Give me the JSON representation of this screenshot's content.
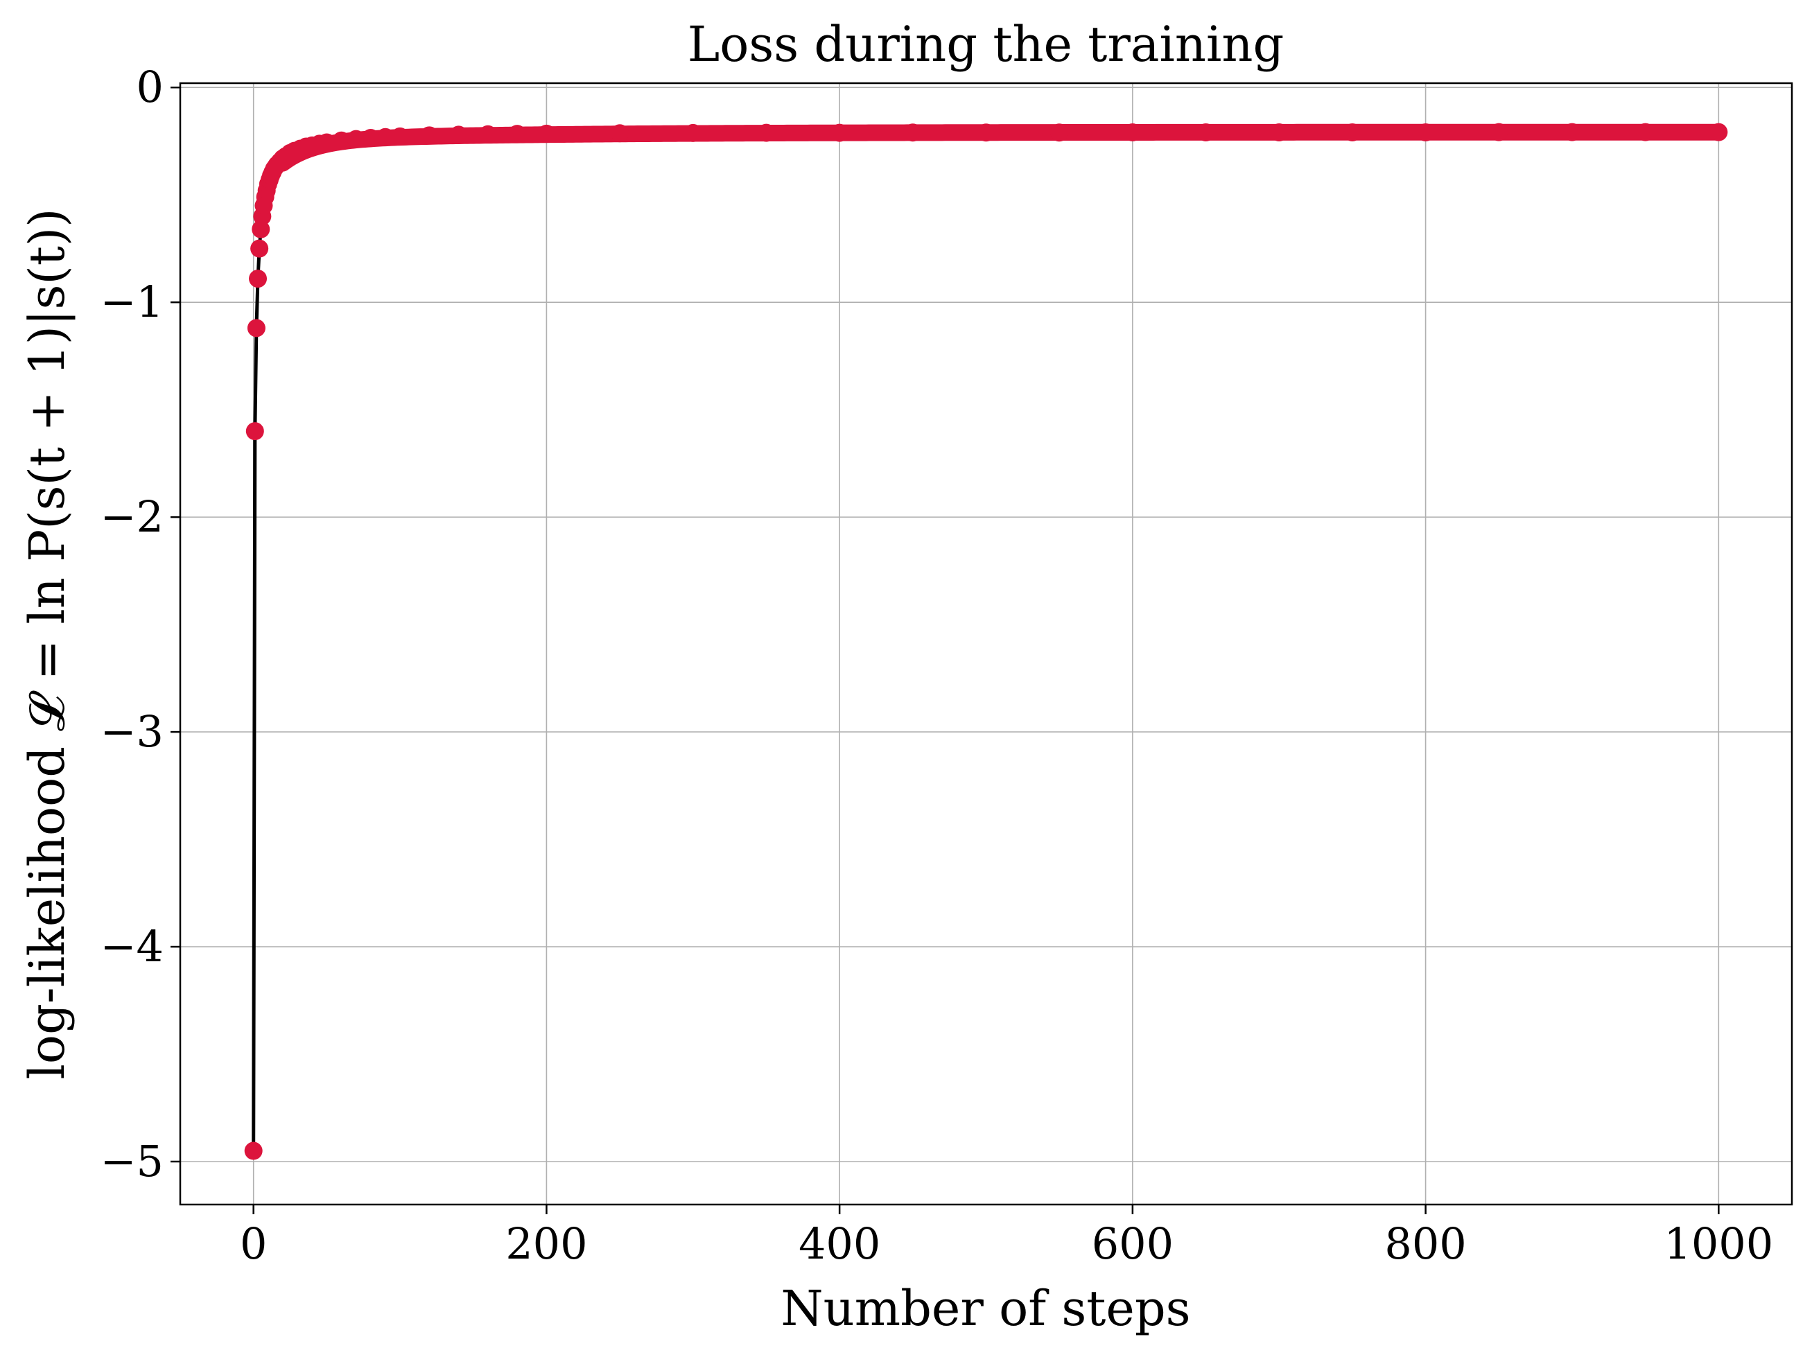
{
  "chart_data": {
    "type": "line",
    "title": "Loss during the training",
    "xlabel": "Number of steps",
    "ylabel": "log-likelihood 𝓛 = ln P(s(t + 1)|s(t))",
    "xlim": [
      -50,
      1050
    ],
    "ylim": [
      -5.2,
      0.02
    ],
    "xticks": [
      0,
      200,
      400,
      600,
      800,
      1000
    ],
    "xtick_labels": [
      "0",
      "200",
      "400",
      "600",
      "800",
      "1000"
    ],
    "yticks": [
      0,
      -1,
      -2,
      -3,
      -4,
      -5
    ],
    "ytick_labels": [
      "0",
      "−1",
      "−2",
      "−3",
      "−4",
      "−5"
    ],
    "grid": true,
    "line_color": "#000000",
    "marker_color": "#DC143C",
    "series": [
      {
        "x": [
          0,
          1,
          2,
          3,
          4,
          5,
          6,
          7,
          8,
          9,
          10,
          11,
          12,
          13,
          14,
          15,
          16,
          18,
          20,
          22,
          25,
          28,
          32,
          36,
          40,
          45,
          50,
          60,
          70,
          80,
          90,
          100,
          120,
          140,
          160,
          180,
          200,
          250,
          300,
          350,
          400,
          450,
          500,
          550,
          600,
          650,
          700,
          750,
          800,
          850,
          900,
          950,
          1000
        ],
        "y": [
          -4.95,
          -1.6,
          -1.12,
          -0.89,
          -0.75,
          -0.66,
          -0.6,
          -0.55,
          -0.51,
          -0.48,
          -0.45,
          -0.43,
          -0.41,
          -0.395,
          -0.38,
          -0.37,
          -0.36,
          -0.345,
          -0.33,
          -0.32,
          -0.305,
          -0.295,
          -0.285,
          -0.275,
          -0.27,
          -0.262,
          -0.256,
          -0.247,
          -0.24,
          -0.235,
          -0.231,
          -0.228,
          -0.223,
          -0.22,
          -0.218,
          -0.216,
          -0.215,
          -0.213,
          -0.212,
          -0.211,
          -0.211,
          -0.21,
          -0.21,
          -0.21,
          -0.209,
          -0.209,
          -0.209,
          -0.209,
          -0.209,
          -0.208,
          -0.208,
          -0.208,
          -0.208
        ]
      }
    ]
  }
}
